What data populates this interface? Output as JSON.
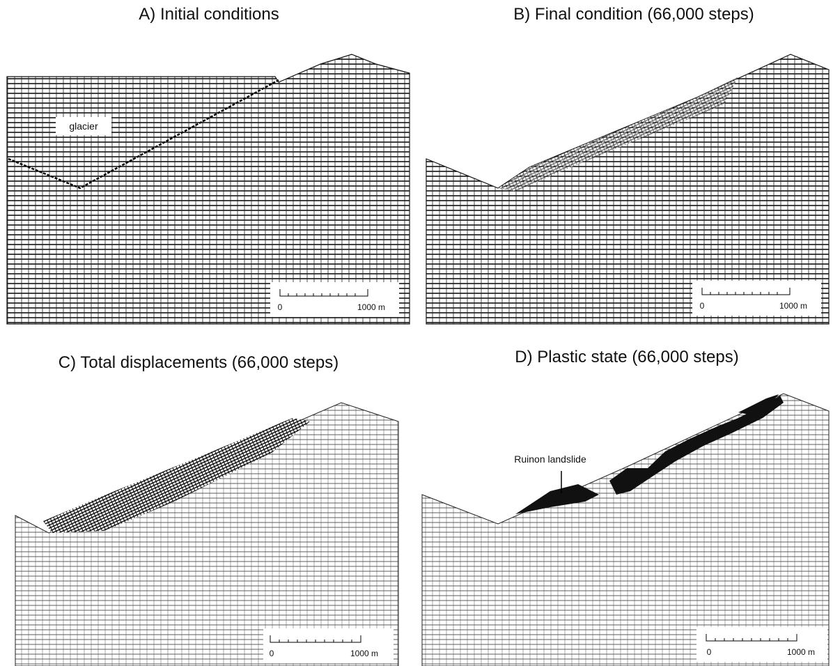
{
  "panels": [
    {
      "title": "A) Initial conditions",
      "label": "glacier",
      "scale_bar": {
        "start": "0",
        "end": "1000 m"
      }
    },
    {
      "title": "B) Final condition (66,000 steps)",
      "scale_bar": {
        "start": "0",
        "end": "1000 m"
      }
    },
    {
      "title": "C) Total displacements (66,000 steps)",
      "scale_bar": {
        "start": "0",
        "end": "1000 m"
      }
    },
    {
      "title": "D) Plastic state (66,000 steps)",
      "label": "Ruinon landslide",
      "scale_bar": {
        "start": "0",
        "end": "1000 m"
      }
    }
  ]
}
